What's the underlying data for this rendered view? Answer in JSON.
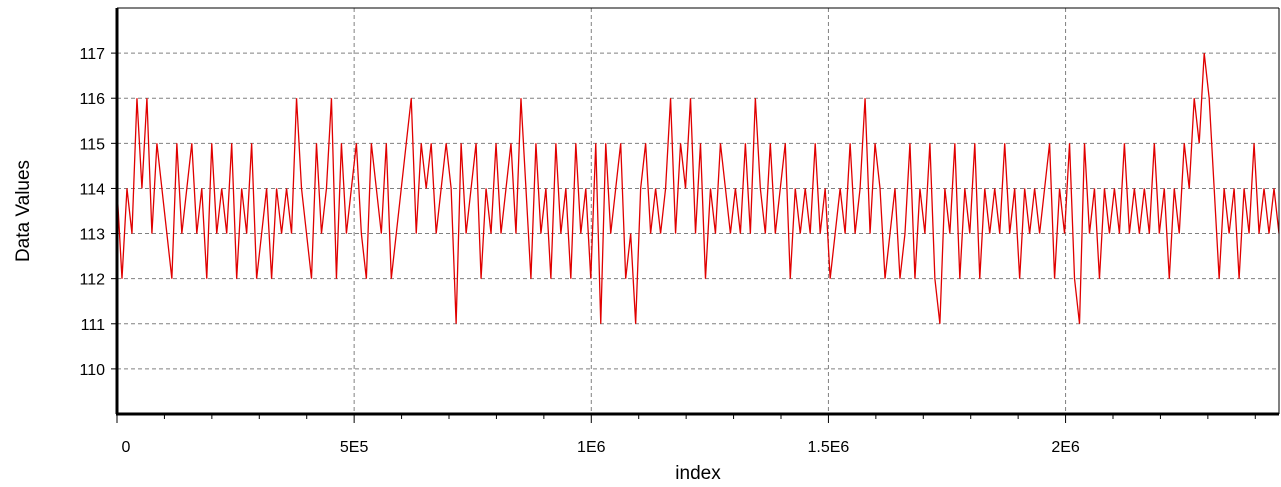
{
  "chart_data": {
    "type": "line",
    "title": "",
    "xlabel": "index",
    "ylabel": "Data Values",
    "xlim": [
      0,
      2450000
    ],
    "ylim": [
      109,
      118
    ],
    "grid": true,
    "grid_style": "dashed",
    "legend": "none",
    "x_ticks": [
      {
        "value": 0,
        "label": "0"
      },
      {
        "value": 500000,
        "label": "5E5"
      },
      {
        "value": 1000000,
        "label": "1E6"
      },
      {
        "value": 1500000,
        "label": "1.5E6"
      },
      {
        "value": 2000000,
        "label": "2E6"
      }
    ],
    "y_ticks": [
      {
        "value": 110,
        "label": "110"
      },
      {
        "value": 111,
        "label": "111"
      },
      {
        "value": 112,
        "label": "112"
      },
      {
        "value": 113,
        "label": "113"
      },
      {
        "value": 114,
        "label": "114"
      },
      {
        "value": 115,
        "label": "115"
      },
      {
        "value": 116,
        "label": "116"
      },
      {
        "value": 117,
        "label": "117"
      }
    ],
    "series": [
      {
        "color": "#e00000",
        "x_start": 0,
        "x_end": 2450000,
        "values": [
          114,
          112,
          114,
          113,
          116,
          114,
          116,
          113,
          115,
          114,
          113,
          112,
          115,
          113,
          114,
          115,
          113,
          114,
          112,
          115,
          113,
          114,
          113,
          115,
          112,
          114,
          113,
          115,
          112,
          113,
          114,
          112,
          114,
          113,
          114,
          113,
          116,
          114,
          113,
          112,
          115,
          113,
          114,
          116,
          112,
          115,
          113,
          114,
          115,
          113,
          112,
          115,
          114,
          113,
          115,
          112,
          113,
          114,
          115,
          116,
          113,
          115,
          114,
          115,
          113,
          114,
          115,
          114,
          111,
          115,
          113,
          114,
          115,
          112,
          114,
          113,
          115,
          113,
          114,
          115,
          113,
          116,
          114,
          112,
          115,
          113,
          114,
          112,
          115,
          113,
          114,
          112,
          115,
          113,
          114,
          112,
          115,
          111,
          115,
          113,
          114,
          115,
          112,
          113,
          111,
          114,
          115,
          113,
          114,
          113,
          114,
          116,
          113,
          115,
          114,
          116,
          113,
          115,
          112,
          114,
          113,
          115,
          114,
          113,
          114,
          113,
          115,
          113,
          116,
          114,
          113,
          115,
          113,
          114,
          115,
          112,
          114,
          113,
          114,
          113,
          115,
          113,
          114,
          112,
          113,
          114,
          113,
          115,
          113,
          114,
          116,
          113,
          115,
          114,
          112,
          113,
          114,
          112,
          113,
          115,
          112,
          114,
          113,
          115,
          112,
          111,
          114,
          113,
          115,
          112,
          114,
          113,
          115,
          112,
          114,
          113,
          114,
          113,
          115,
          113,
          114,
          112,
          114,
          113,
          114,
          113,
          114,
          115,
          112,
          114,
          113,
          115,
          112,
          111,
          115,
          113,
          114,
          112,
          114,
          113,
          114,
          113,
          115,
          113,
          114,
          113,
          114,
          113,
          115,
          113,
          114,
          112,
          114,
          113,
          115,
          114,
          116,
          115,
          117,
          116,
          114,
          112,
          114,
          113,
          114,
          112,
          114,
          113,
          115,
          113,
          114,
          113,
          114,
          113
        ]
      }
    ]
  }
}
